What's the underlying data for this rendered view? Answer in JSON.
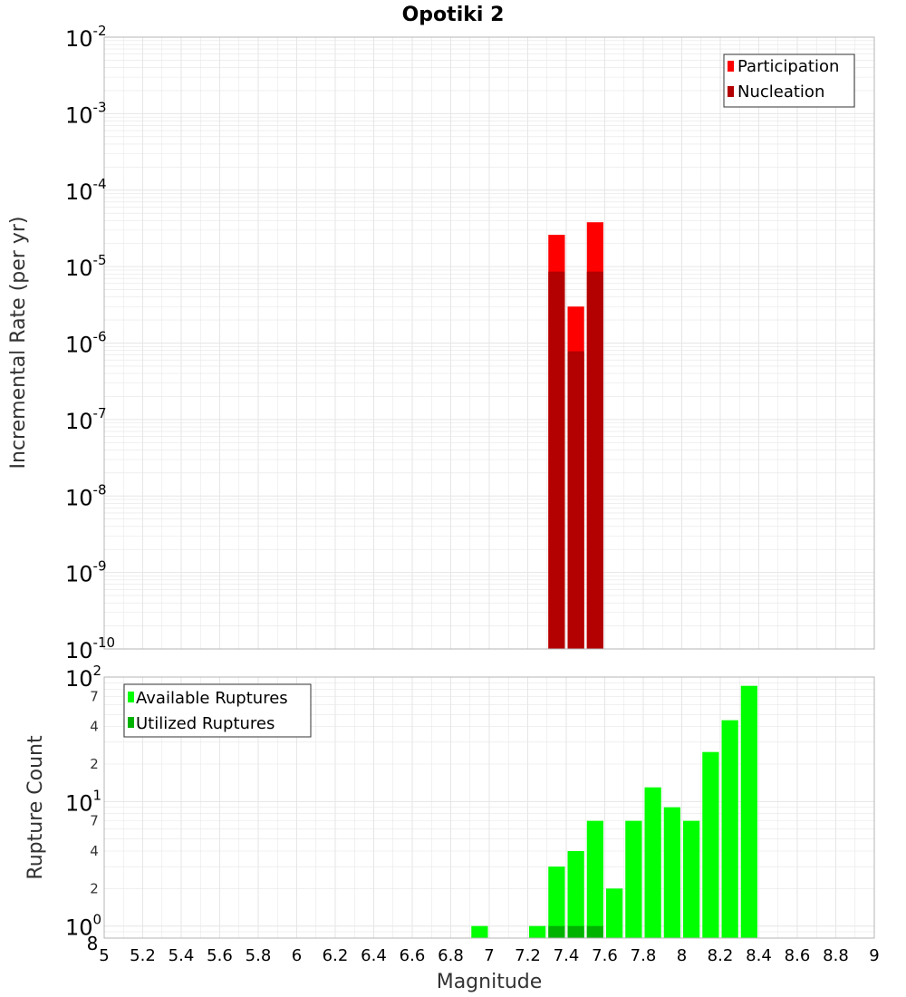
{
  "title": "Opotiki 2",
  "colors": {
    "participation": "#ff0000",
    "nucleation": "#b30000",
    "available": "#00ff00",
    "utilized": "#00b300",
    "grid": "#e6e6e6",
    "frame": "#b4b4b4"
  },
  "chart_data": [
    {
      "type": "bar",
      "panel": "top",
      "ylabel": "Incremental Rate (per yr)",
      "yscale": "log",
      "ylim": [
        1e-10,
        0.01
      ],
      "xlim": [
        5,
        9
      ],
      "grid": true,
      "bar_width": 0.1,
      "legend_position": "top-right",
      "y_ticks": [
        {
          "base": "10",
          "exp": "-10",
          "value": 1e-10
        },
        {
          "base": "10",
          "exp": "-9",
          "value": 1e-09
        },
        {
          "base": "10",
          "exp": "-8",
          "value": 1e-08
        },
        {
          "base": "10",
          "exp": "-7",
          "value": 1e-07
        },
        {
          "base": "10",
          "exp": "-6",
          "value": 1e-06
        },
        {
          "base": "10",
          "exp": "-5",
          "value": 1e-05
        },
        {
          "base": "10",
          "exp": "-4",
          "value": 0.0001
        },
        {
          "base": "10",
          "exp": "-3",
          "value": 0.001
        },
        {
          "base": "10",
          "exp": "-2",
          "value": 0.01
        }
      ],
      "series": [
        {
          "name": "Participation",
          "color": "#ff0000",
          "points": [
            [
              7.35,
              2.6e-05
            ],
            [
              7.45,
              3e-06
            ],
            [
              7.55,
              3.8e-05
            ]
          ]
        },
        {
          "name": "Nucleation",
          "color": "#b30000",
          "points": [
            [
              7.35,
              8.6e-06
            ],
            [
              7.45,
              7.8e-07
            ],
            [
              7.55,
              8.6e-06
            ]
          ]
        }
      ]
    },
    {
      "type": "bar",
      "panel": "bottom",
      "xlabel": "Magnitude",
      "ylabel": "Rupture Count",
      "yscale": "log",
      "ylim": [
        0.8,
        100
      ],
      "xlim": [
        5,
        9
      ],
      "grid": true,
      "bar_width": 0.1,
      "legend_position": "top-left",
      "y_ticks": [
        {
          "base": "10",
          "exp": "0",
          "value": 1
        },
        {
          "base": "10",
          "exp": "1",
          "value": 10
        },
        {
          "base": "10",
          "exp": "2",
          "value": 100
        }
      ],
      "y_minor_ticks": [
        {
          "label": "8",
          "value": 0.8
        },
        {
          "label": "2",
          "value": 2
        },
        {
          "label": "4",
          "value": 4
        },
        {
          "label": "7",
          "value": 7
        },
        {
          "label": "2",
          "value": 20
        },
        {
          "label": "4",
          "value": 40
        },
        {
          "label": "7",
          "value": 70
        }
      ],
      "series": [
        {
          "name": "Available Ruptures",
          "color": "#00ff00",
          "points": [
            [
              6.95,
              1
            ],
            [
              7.25,
              1
            ],
            [
              7.35,
              3
            ],
            [
              7.45,
              4
            ],
            [
              7.55,
              7
            ],
            [
              7.65,
              2
            ],
            [
              7.75,
              7
            ],
            [
              7.85,
              13
            ],
            [
              7.95,
              9
            ],
            [
              8.05,
              7
            ],
            [
              8.15,
              25
            ],
            [
              8.25,
              45
            ],
            [
              8.35,
              85
            ]
          ]
        },
        {
          "name": "Utilized Ruptures",
          "color": "#00b300",
          "points": [
            [
              7.35,
              1
            ],
            [
              7.45,
              1
            ],
            [
              7.55,
              1
            ]
          ]
        }
      ]
    }
  ],
  "x_ticks": [
    "5",
    "5.2",
    "5.4",
    "5.6",
    "5.8",
    "6",
    "6.2",
    "6.4",
    "6.6",
    "6.8",
    "7",
    "7.2",
    "7.4",
    "7.6",
    "7.8",
    "8",
    "8.2",
    "8.4",
    "8.6",
    "8.8",
    "9"
  ]
}
